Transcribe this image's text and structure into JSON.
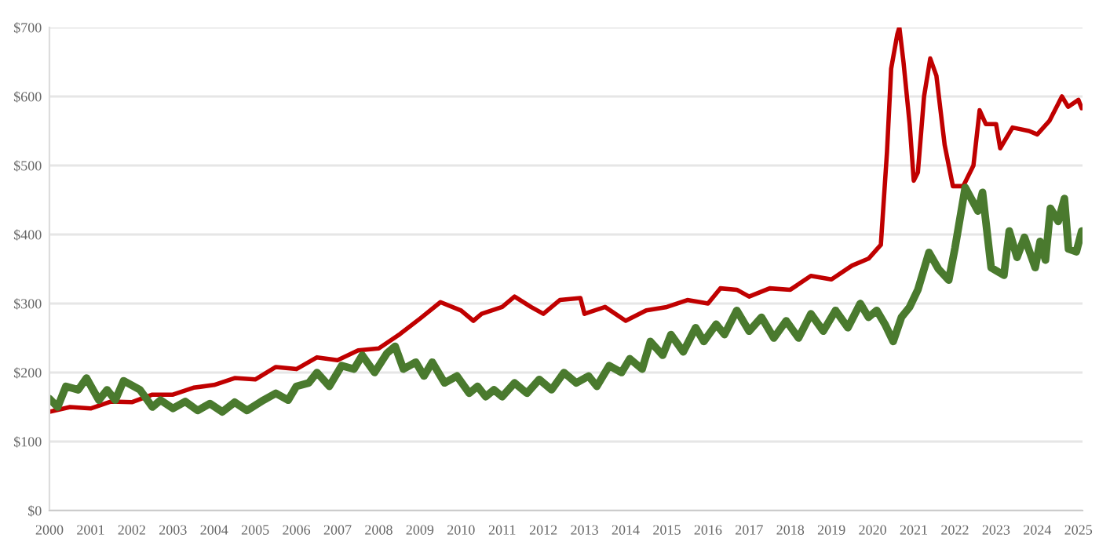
{
  "chart_data": {
    "type": "line",
    "xlim": [
      2000,
      2025.1
    ],
    "ylim": [
      0,
      700
    ],
    "xticks": [
      2000,
      2001,
      2002,
      2003,
      2004,
      2005,
      2006,
      2007,
      2008,
      2009,
      2010,
      2011,
      2012,
      2013,
      2014,
      2015,
      2016,
      2017,
      2018,
      2019,
      2020,
      2021,
      2022,
      2023,
      2024,
      2025
    ],
    "yticks": [
      {
        "value": 0,
        "label": "$0"
      },
      {
        "value": 100,
        "label": "$100"
      },
      {
        "value": 200,
        "label": "$200"
      },
      {
        "value": 300,
        "label": "$300"
      },
      {
        "value": 400,
        "label": "$400"
      },
      {
        "value": 500,
        "label": "$500"
      },
      {
        "value": 600,
        "label": "$600"
      },
      {
        "value": 700,
        "label": "$700"
      }
    ],
    "grid": "y",
    "marker": "none",
    "line_style": "solid",
    "series": [
      {
        "color": "#c00000",
        "x": [
          2000,
          2000.5,
          2001,
          2001.5,
          2002,
          2002.5,
          2003,
          2003.5,
          2004,
          2004.5,
          2005,
          2005.5,
          2006,
          2006.5,
          2007,
          2007.5,
          2008,
          2008.5,
          2009,
          2009.5,
          2010,
          2010.3,
          2010.5,
          2011,
          2011.3,
          2011.7,
          2012,
          2012.4,
          2012.9,
          2013,
          2013.5,
          2014,
          2014.5,
          2015,
          2015.5,
          2016,
          2016.3,
          2016.7,
          2017,
          2017.5,
          2018,
          2018.5,
          2019,
          2019.5,
          2019.9,
          2020.2,
          2020.35,
          2020.45,
          2020.6,
          2020.65,
          2020.75,
          2020.9,
          2021.0,
          2021.1,
          2021.25,
          2021.4,
          2021.55,
          2021.75,
          2021.95,
          2022.2,
          2022.45,
          2022.6,
          2022.75,
          2023.0,
          2023.1,
          2023.4,
          2023.8,
          2024.0,
          2024.3,
          2024.6,
          2024.75,
          2025.0,
          2025.08
        ],
        "values": [
          143,
          150,
          148,
          158,
          157,
          168,
          168,
          178,
          182,
          192,
          190,
          208,
          205,
          222,
          218,
          232,
          235,
          255,
          278,
          302,
          290,
          275,
          285,
          295,
          310,
          295,
          285,
          305,
          308,
          285,
          295,
          275,
          290,
          295,
          305,
          300,
          322,
          320,
          310,
          322,
          320,
          340,
          335,
          355,
          365,
          385,
          520,
          640,
          690,
          700,
          650,
          560,
          478,
          490,
          600,
          655,
          630,
          530,
          470,
          470,
          500,
          580,
          560,
          560,
          525,
          555,
          550,
          545,
          565,
          600,
          585,
          595,
          583
        ]
      },
      {
        "color": "#4a7a2e",
        "x": [
          2000,
          2000.2,
          2000.4,
          2000.7,
          2000.9,
          2001.2,
          2001.4,
          2001.6,
          2001.8,
          2002.2,
          2002.5,
          2002.7,
          2003,
          2003.3,
          2003.6,
          2003.9,
          2004.2,
          2004.5,
          2004.8,
          2005.2,
          2005.5,
          2005.8,
          2006,
          2006.3,
          2006.5,
          2006.8,
          2007.1,
          2007.4,
          2007.6,
          2007.9,
          2008.2,
          2008.4,
          2008.6,
          2008.9,
          2009.1,
          2009.3,
          2009.6,
          2009.9,
          2010.2,
          2010.4,
          2010.6,
          2010.8,
          2011.0,
          2011.3,
          2011.6,
          2011.9,
          2012.2,
          2012.5,
          2012.8,
          2013.1,
          2013.3,
          2013.6,
          2013.9,
          2014.1,
          2014.4,
          2014.6,
          2014.9,
          2015.1,
          2015.4,
          2015.7,
          2015.9,
          2016.2,
          2016.4,
          2016.7,
          2017.0,
          2017.3,
          2017.6,
          2017.9,
          2018.2,
          2018.5,
          2018.8,
          2019.1,
          2019.4,
          2019.7,
          2019.9,
          2020.1,
          2020.3,
          2020.5,
          2020.7,
          2020.9,
          2021.1,
          2021.37,
          2021.6,
          2021.85,
          2022.0,
          2022.25,
          2022.56,
          2022.67,
          2022.88,
          2023.19,
          2023.32,
          2023.51,
          2023.69,
          2023.95,
          2024.07,
          2024.2,
          2024.32,
          2024.51,
          2024.66,
          2024.76,
          2024.95,
          2025.08
        ],
        "values": [
          162,
          150,
          180,
          175,
          192,
          160,
          175,
          160,
          188,
          175,
          150,
          160,
          148,
          158,
          145,
          155,
          143,
          157,
          145,
          160,
          170,
          160,
          180,
          185,
          200,
          180,
          210,
          205,
          225,
          200,
          228,
          238,
          205,
          215,
          195,
          215,
          185,
          195,
          170,
          180,
          165,
          175,
          165,
          185,
          170,
          190,
          175,
          200,
          185,
          195,
          180,
          210,
          200,
          220,
          205,
          245,
          225,
          255,
          230,
          265,
          245,
          270,
          255,
          290,
          260,
          280,
          250,
          275,
          250,
          285,
          260,
          290,
          265,
          300,
          280,
          290,
          270,
          245,
          280,
          295,
          320,
          374,
          350,
          334,
          380,
          468,
          434,
          461,
          352,
          341,
          405,
          367,
          396,
          352,
          390,
          363,
          438,
          419,
          452,
          379,
          375,
          405
        ]
      }
    ]
  }
}
